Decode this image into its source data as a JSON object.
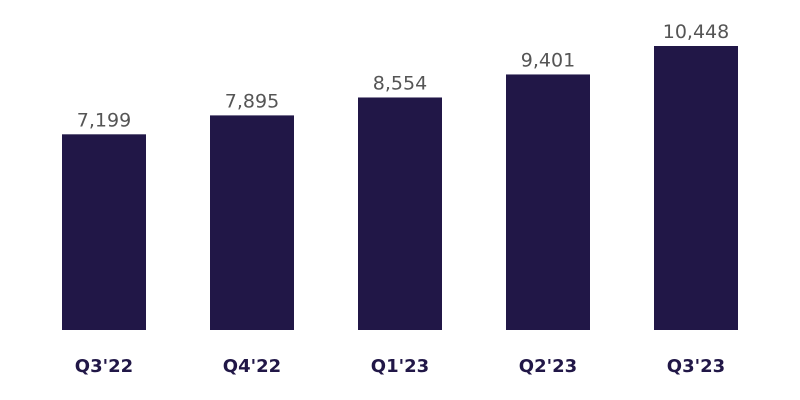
{
  "chart_data": {
    "type": "bar",
    "categories": [
      "Q3'22",
      "Q4'22",
      "Q1'23",
      "Q2'23",
      "Q3'23"
    ],
    "values": [
      7199,
      7895,
      8554,
      9401,
      10448
    ],
    "value_labels": [
      "7,199",
      "7,895",
      "8,554",
      "9,401",
      "10,448"
    ],
    "color": "#211747"
  }
}
